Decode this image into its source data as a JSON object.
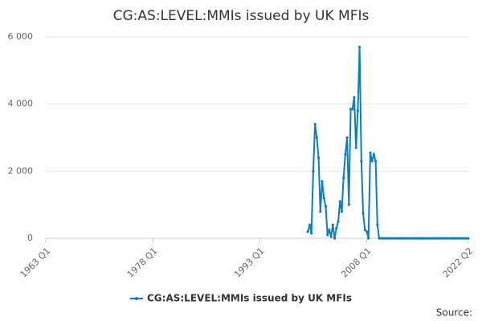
{
  "chart_data": {
    "type": "line",
    "title": "CG:AS:LEVEL:MMIs issued by UK MFIs",
    "categories": [
      "1963 Q1",
      null,
      null,
      null,
      null,
      null,
      null,
      null,
      null,
      null,
      null,
      null,
      null,
      null,
      null,
      null,
      null,
      null,
      null,
      null,
      null,
      null,
      null,
      null,
      null,
      null,
      null,
      null,
      null,
      null,
      null,
      null,
      null,
      null,
      null,
      null,
      null,
      null,
      null,
      null,
      null,
      null,
      null,
      null,
      null,
      null,
      null,
      null,
      null,
      null,
      null,
      null,
      null,
      null,
      null,
      null,
      null,
      null,
      null,
      null,
      "1978 Q1",
      null,
      null,
      null,
      null,
      null,
      null,
      null,
      null,
      null,
      null,
      null,
      null,
      null,
      null,
      null,
      null,
      null,
      null,
      null,
      null,
      null,
      null,
      null,
      null,
      null,
      null,
      null,
      null,
      null,
      null,
      null,
      null,
      null,
      null,
      null,
      null,
      null,
      null,
      null,
      null,
      null,
      null,
      null,
      null,
      null,
      null,
      null,
      null,
      null,
      null,
      null,
      null,
      null,
      null,
      null,
      null,
      null,
      null,
      null,
      "1993 Q1",
      null,
      null,
      null,
      null,
      null,
      null,
      null,
      null,
      null,
      null,
      null,
      null,
      null,
      null,
      null,
      null,
      null,
      null,
      null,
      null,
      null,
      null,
      null,
      null,
      null,
      null,
      null,
      null,
      null,
      null,
      null,
      null,
      null,
      null,
      null,
      null,
      null,
      null,
      null,
      null,
      null,
      null,
      null,
      null,
      null,
      null,
      null,
      null,
      null,
      null,
      null,
      null,
      null,
      null,
      null,
      null,
      null,
      null,
      null,
      "2008 Q1",
      null,
      null,
      null,
      null,
      null,
      null,
      null,
      null,
      null,
      null,
      null,
      null,
      null,
      null,
      null,
      null,
      null,
      null,
      null,
      null,
      null,
      null,
      null,
      null,
      null,
      null,
      null,
      null,
      null,
      null,
      null,
      null,
      null,
      null,
      null,
      null,
      null,
      null,
      null,
      null,
      null,
      null,
      null,
      null,
      null,
      null,
      null,
      null,
      null,
      null,
      null,
      null,
      null,
      null,
      null,
      null,
      "2022 Q2"
    ],
    "series": [
      {
        "name": "CG:AS:LEVEL:MMIs issued by UK MFIs",
        "color": "#117cb5",
        "values": [
          null,
          null,
          null,
          null,
          null,
          null,
          null,
          null,
          null,
          null,
          null,
          null,
          null,
          null,
          null,
          null,
          null,
          null,
          null,
          null,
          null,
          null,
          null,
          null,
          null,
          null,
          null,
          null,
          null,
          null,
          null,
          null,
          null,
          null,
          null,
          null,
          null,
          null,
          null,
          null,
          null,
          null,
          null,
          null,
          null,
          null,
          null,
          null,
          null,
          null,
          null,
          null,
          null,
          null,
          null,
          null,
          null,
          null,
          null,
          null,
          null,
          null,
          null,
          null,
          null,
          null,
          null,
          null,
          null,
          null,
          null,
          null,
          null,
          null,
          null,
          null,
          null,
          null,
          null,
          null,
          null,
          null,
          null,
          null,
          null,
          null,
          null,
          null,
          null,
          null,
          null,
          null,
          null,
          null,
          null,
          null,
          null,
          null,
          null,
          null,
          null,
          null,
          null,
          null,
          null,
          null,
          null,
          null,
          null,
          null,
          null,
          null,
          null,
          null,
          null,
          null,
          null,
          null,
          null,
          null,
          null,
          null,
          null,
          null,
          null,
          null,
          null,
          null,
          null,
          null,
          null,
          null,
          null,
          null,
          null,
          null,
          null,
          null,
          null,
          null,
          null,
          null,
          null,
          null,
          null,
          null,
          null,
          200,
          400,
          150,
          2000,
          3400,
          3000,
          2400,
          800,
          1700,
          1200,
          950,
          100,
          250,
          50,
          400,
          0,
          300,
          500,
          1100,
          800,
          1800,
          2500,
          3000,
          1000,
          3850,
          3850,
          4200,
          2700,
          3800,
          5700,
          2300,
          750,
          250,
          200,
          0,
          2550,
          2300,
          2500,
          2300,
          400,
          0,
          0,
          0,
          0,
          0,
          0,
          0,
          0,
          0,
          0,
          0,
          0,
          0,
          0,
          0,
          0,
          0,
          0,
          0,
          0,
          0,
          0,
          0,
          0,
          0,
          0,
          0,
          0,
          0,
          0,
          0,
          0,
          0,
          0,
          0,
          0,
          0,
          0,
          0,
          0,
          0,
          0,
          0,
          0,
          0,
          0,
          0,
          0,
          0,
          0,
          0
        ]
      }
    ],
    "ylim": [
      0,
      6000
    ],
    "yticks": [
      0,
      {
        "value": 2000,
        "label": "2 000"
      },
      {
        "value": 4000,
        "label": "4 000"
      },
      {
        "value": 6000,
        "label": "6 000"
      }
    ],
    "grid": true,
    "source": "Source:"
  }
}
